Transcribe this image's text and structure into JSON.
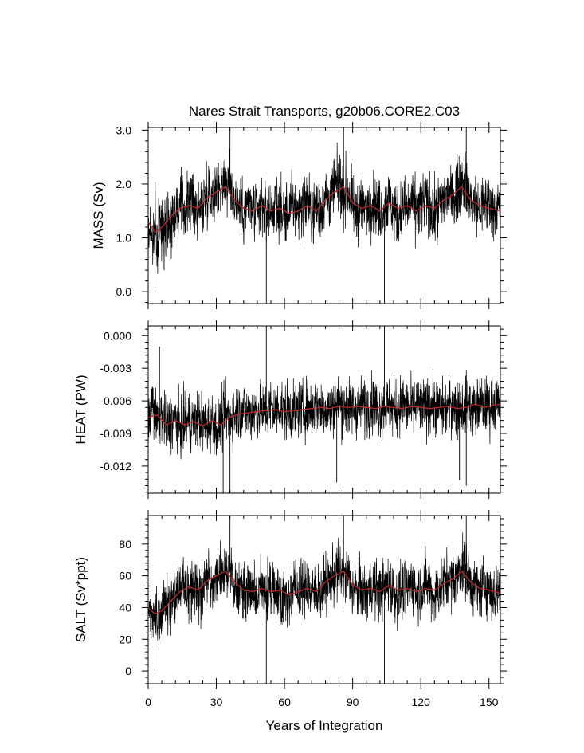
{
  "colors": {
    "background": "#ffffff",
    "axes": "#000000",
    "raw_series": "#000000",
    "smoothed_series": "#c0282a"
  },
  "chart_data": {
    "type": "line",
    "title": "Nares Strait Transports, g20b06.CORE2.C03",
    "xlabel": "Years of Integration",
    "xlim": [
      0,
      155
    ],
    "xticks": [
      0,
      30,
      60,
      90,
      120,
      150
    ],
    "xtick_labels": [
      "0",
      "30",
      "60",
      "90",
      "120",
      "150"
    ],
    "shared_x": true,
    "panels": [
      {
        "name": "mass",
        "ylabel": "MASS (Sv)",
        "ylim": [
          -0.22,
          3.05
        ],
        "yticks": [
          0.0,
          1.0,
          2.0,
          3.0
        ],
        "ytick_labels": [
          "0.0",
          "1.0",
          "2.0",
          "3.0"
        ],
        "series": [
          {
            "name": "monthly",
            "style": "black-thin",
            "x": [
              0,
              1,
              2,
              3,
              4,
              5,
              6,
              8,
              10,
              12,
              14,
              16,
              18,
              20,
              22,
              24,
              26,
              28,
              30,
              32,
              34,
              35,
              36,
              38,
              40,
              42,
              44,
              46,
              48,
              50,
              52,
              54,
              56,
              58,
              60,
              62,
              64,
              66,
              68,
              70,
              72,
              74,
              76,
              78,
              80,
              82,
              84,
              86,
              88,
              90,
              92,
              94,
              96,
              98,
              100,
              102,
              104,
              106,
              108,
              110,
              112,
              114,
              116,
              118,
              120,
              122,
              124,
              126,
              128,
              130,
              132,
              134,
              136,
              138,
              140,
              142,
              144,
              146,
              148,
              150,
              152,
              154,
              155
            ],
            "y": [
              1.0,
              1.3,
              0.9,
              1.2,
              0.8,
              1.3,
              1.1,
              1.4,
              1.3,
              1.5,
              1.6,
              1.5,
              1.7,
              1.6,
              1.5,
              1.6,
              1.9,
              1.8,
              1.9,
              2.0,
              2.1,
              1.9,
              2.0,
              1.7,
              1.6,
              1.5,
              1.6,
              1.5,
              1.4,
              1.6,
              1.5,
              1.5,
              1.6,
              1.5,
              1.4,
              1.5,
              1.6,
              1.5,
              1.6,
              1.7,
              1.4,
              1.6,
              1.5,
              1.8,
              1.7,
              1.9,
              2.0,
              1.8,
              1.9,
              1.6,
              1.5,
              1.6,
              1.5,
              1.7,
              1.6,
              1.5,
              1.6,
              1.7,
              1.5,
              1.4,
              1.6,
              1.5,
              1.7,
              1.5,
              1.6,
              1.7,
              1.6,
              1.4,
              1.6,
              1.7,
              1.8,
              1.7,
              1.9,
              2.1,
              2.0,
              1.7,
              1.6,
              1.5,
              1.7,
              1.6,
              1.5,
              1.6,
              1.5
            ],
            "spikes": [
              [
                3,
                0.0
              ],
              [
                7,
                0.4
              ],
              [
                36,
                3.05
              ],
              [
                52,
                -0.22
              ],
              [
                86,
                3.05
              ],
              [
                104,
                -0.22
              ],
              [
                140,
                3.05
              ]
            ]
          },
          {
            "name": "smoothed",
            "style": "red",
            "x": [
              0,
              3,
              6,
              10,
              14,
              18,
              22,
              26,
              30,
              34,
              38,
              42,
              46,
              50,
              54,
              58,
              62,
              66,
              70,
              74,
              78,
              82,
              86,
              90,
              94,
              98,
              102,
              106,
              110,
              114,
              118,
              122,
              126,
              130,
              134,
              138,
              142,
              146,
              150,
              155
            ],
            "y": [
              1.3,
              1.1,
              1.2,
              1.4,
              1.55,
              1.6,
              1.55,
              1.75,
              1.85,
              1.95,
              1.7,
              1.55,
              1.5,
              1.6,
              1.5,
              1.55,
              1.45,
              1.5,
              1.6,
              1.5,
              1.7,
              1.85,
              1.95,
              1.65,
              1.55,
              1.6,
              1.5,
              1.65,
              1.55,
              1.6,
              1.5,
              1.6,
              1.55,
              1.7,
              1.8,
              1.95,
              1.7,
              1.6,
              1.55,
              1.5
            ]
          }
        ]
      },
      {
        "name": "heat",
        "ylabel": "HEAT (PW)",
        "ylim": [
          -0.0145,
          0.0009
        ],
        "yticks": [
          -0.012,
          -0.009,
          -0.006,
          -0.003,
          0.0
        ],
        "ytick_labels": [
          "-0.012",
          "-0.009",
          "-0.006",
          "-0.003",
          "0.000"
        ],
        "series": [
          {
            "name": "monthly",
            "style": "black-thin",
            "x": [
              0,
              2,
              4,
              6,
              8,
              10,
              12,
              14,
              16,
              18,
              20,
              22,
              24,
              26,
              28,
              30,
              32,
              34,
              36,
              38,
              40,
              42,
              44,
              46,
              48,
              50,
              52,
              54,
              56,
              58,
              60,
              62,
              64,
              66,
              68,
              70,
              72,
              74,
              76,
              78,
              80,
              82,
              84,
              86,
              88,
              90,
              92,
              94,
              96,
              98,
              100,
              102,
              104,
              106,
              108,
              110,
              112,
              114,
              116,
              118,
              120,
              122,
              124,
              126,
              128,
              130,
              132,
              134,
              136,
              138,
              140,
              142,
              144,
              146,
              148,
              150,
              152,
              155
            ],
            "y": [
              -0.0075,
              -0.0065,
              -0.008,
              -0.007,
              -0.0085,
              -0.008,
              -0.0075,
              -0.0085,
              -0.008,
              -0.0078,
              -0.0082,
              -0.0076,
              -0.008,
              -0.0083,
              -0.0078,
              -0.0085,
              -0.008,
              -0.0072,
              -0.0075,
              -0.0072,
              -0.007,
              -0.0068,
              -0.0072,
              -0.007,
              -0.0068,
              -0.0072,
              -0.007,
              -0.0066,
              -0.0068,
              -0.0065,
              -0.007,
              -0.0068,
              -0.0072,
              -0.0067,
              -0.0069,
              -0.0066,
              -0.0068,
              -0.0064,
              -0.0068,
              -0.0065,
              -0.0068,
              -0.0066,
              -0.0062,
              -0.0066,
              -0.0068,
              -0.0065,
              -0.0067,
              -0.0064,
              -0.0066,
              -0.0063,
              -0.0065,
              -0.0068,
              -0.0064,
              -0.0066,
              -0.0068,
              -0.0065,
              -0.0062,
              -0.0066,
              -0.0068,
              -0.0065,
              -0.0066,
              -0.0068,
              -0.0062,
              -0.0065,
              -0.0066,
              -0.0068,
              -0.0066,
              -0.0063,
              -0.0067,
              -0.0065,
              -0.0062,
              -0.0065,
              -0.0067,
              -0.0063,
              -0.0064,
              -0.0066,
              -0.0062,
              -0.0063
            ],
            "spikes": [
              [
                5,
                -0.001
              ],
              [
                33,
                -0.0145
              ],
              [
                36,
                -0.0145
              ],
              [
                52,
                0.0009
              ],
              [
                83,
                -0.0135
              ],
              [
                104,
                0.0009
              ],
              [
                137,
                -0.0133
              ],
              [
                140,
                -0.0138
              ]
            ]
          },
          {
            "name": "smoothed",
            "style": "red",
            "x": [
              0,
              4,
              8,
              12,
              16,
              20,
              24,
              28,
              32,
              36,
              40,
              44,
              48,
              52,
              56,
              60,
              64,
              68,
              72,
              76,
              80,
              84,
              88,
              92,
              96,
              100,
              104,
              108,
              112,
              116,
              120,
              124,
              128,
              132,
              136,
              140,
              144,
              148,
              152,
              155
            ],
            "y": [
              -0.0075,
              -0.0073,
              -0.0082,
              -0.0078,
              -0.0082,
              -0.0079,
              -0.0083,
              -0.0078,
              -0.0082,
              -0.0075,
              -0.0072,
              -0.0071,
              -0.007,
              -0.0069,
              -0.0068,
              -0.007,
              -0.0069,
              -0.0068,
              -0.0067,
              -0.0066,
              -0.0067,
              -0.0065,
              -0.0066,
              -0.0065,
              -0.0066,
              -0.0067,
              -0.0065,
              -0.0066,
              -0.0067,
              -0.0065,
              -0.0066,
              -0.0067,
              -0.0066,
              -0.0065,
              -0.0067,
              -0.0066,
              -0.0063,
              -0.0066,
              -0.0064,
              -0.0063
            ]
          }
        ]
      },
      {
        "name": "salt",
        "ylabel": "SALT (Sv*ppt)",
        "ylim": [
          -8,
          98
        ],
        "yticks": [
          0,
          20,
          40,
          60,
          80
        ],
        "ytick_labels": [
          "0",
          "20",
          "40",
          "60",
          "80"
        ],
        "series": [
          {
            "name": "monthly",
            "style": "black-thin",
            "x": [
              0,
              1,
              2,
              3,
              4,
              5,
              6,
              8,
              10,
              12,
              14,
              16,
              18,
              20,
              22,
              24,
              26,
              28,
              30,
              32,
              34,
              35,
              36,
              38,
              40,
              42,
              44,
              46,
              48,
              50,
              52,
              54,
              56,
              58,
              60,
              62,
              64,
              66,
              68,
              70,
              72,
              74,
              76,
              78,
              80,
              82,
              84,
              86,
              88,
              90,
              92,
              94,
              96,
              98,
              100,
              102,
              104,
              106,
              108,
              110,
              112,
              114,
              116,
              118,
              120,
              122,
              124,
              126,
              128,
              130,
              132,
              134,
              136,
              138,
              140,
              142,
              144,
              146,
              148,
              150,
              152,
              154,
              155
            ],
            "y": [
              40,
              38,
              32,
              36,
              30,
              38,
              35,
              44,
              42,
              48,
              52,
              50,
              54,
              52,
              48,
              52,
              58,
              56,
              60,
              62,
              64,
              58,
              62,
              54,
              52,
              50,
              52,
              50,
              46,
              52,
              50,
              48,
              52,
              50,
              46,
              48,
              52,
              50,
              52,
              56,
              46,
              52,
              48,
              58,
              56,
              60,
              64,
              58,
              60,
              52,
              50,
              52,
              48,
              54,
              52,
              50,
              52,
              56,
              50,
              46,
              52,
              50,
              56,
              50,
              52,
              56,
              52,
              46,
              52,
              56,
              58,
              56,
              62,
              66,
              64,
              56,
              52,
              50,
              56,
              52,
              48,
              52,
              48
            ],
            "spikes": [
              [
                3,
                0
              ],
              [
                36,
                98
              ],
              [
                52,
                -8
              ],
              [
                86,
                98
              ],
              [
                104,
                -8
              ],
              [
                140,
                98
              ]
            ]
          },
          {
            "name": "smoothed",
            "style": "red",
            "x": [
              0,
              3,
              6,
              10,
              14,
              18,
              22,
              26,
              30,
              34,
              38,
              42,
              46,
              50,
              54,
              58,
              62,
              66,
              70,
              74,
              78,
              82,
              86,
              90,
              94,
              98,
              102,
              106,
              110,
              114,
              118,
              122,
              126,
              130,
              134,
              138,
              142,
              146,
              150,
              155
            ],
            "y": [
              40,
              36,
              38,
              44,
              50,
              53,
              51,
              57,
              60,
              63,
              56,
              51,
              50,
              52,
              50,
              51,
              48,
              50,
              52,
              50,
              56,
              60,
              63,
              54,
              51,
              52,
              50,
              54,
              51,
              52,
              50,
              52,
              51,
              55,
              58,
              63,
              56,
              52,
              51,
              49
            ]
          }
        ]
      }
    ]
  }
}
